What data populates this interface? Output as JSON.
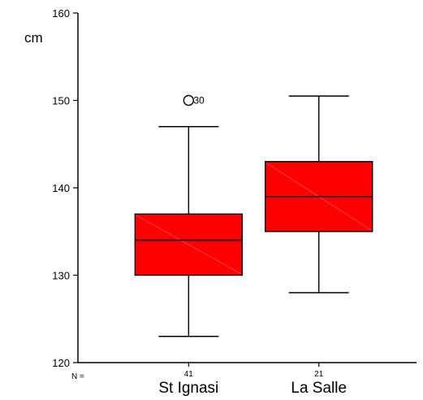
{
  "chart_data": {
    "type": "boxplot",
    "ylabel": "cm",
    "ylim": [
      120,
      160
    ],
    "yticks": [
      120,
      130,
      140,
      150,
      160
    ],
    "n_prefix": "N =",
    "box_color": "#ff0000",
    "groups": [
      {
        "label": "St Ignasi",
        "n": "41",
        "min": 123,
        "q1": 130,
        "median": 134,
        "q3": 137,
        "max": 147,
        "outliers": [
          {
            "value": 150,
            "label": "30"
          }
        ]
      },
      {
        "label": "La Salle",
        "n": "21",
        "min": 128,
        "q1": 135,
        "median": 139,
        "q3": 143,
        "max": 150.5,
        "outliers": []
      }
    ]
  }
}
